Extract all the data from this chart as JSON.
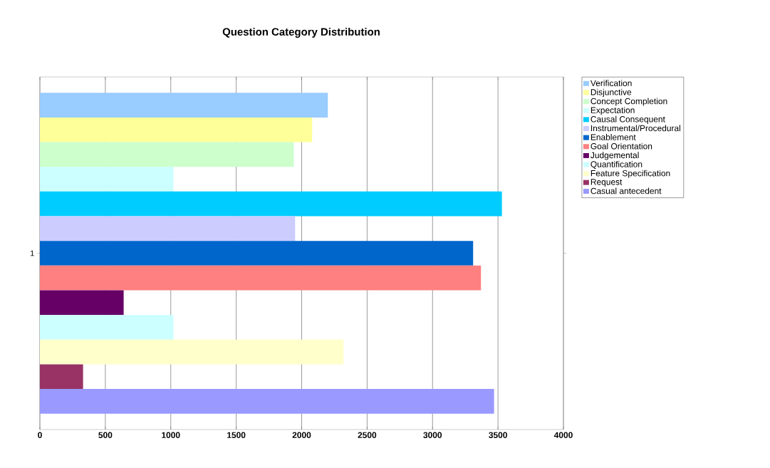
{
  "chart_data": {
    "type": "bar",
    "orientation": "horizontal",
    "title": "Question Category Distribution",
    "categories": [
      "1"
    ],
    "series": [
      {
        "name": "Verification",
        "color": "#99ccff",
        "values": [
          2200
        ]
      },
      {
        "name": "Disjunctive",
        "color": "#ffff99",
        "values": [
          2080
        ]
      },
      {
        "name": "Concept Completion",
        "color": "#ccffcc",
        "values": [
          1940
        ]
      },
      {
        "name": "Expectation",
        "color": "#ccffff",
        "values": [
          1020
        ]
      },
      {
        "name": "Causal Consequent",
        "color": "#00ccff",
        "values": [
          3530
        ]
      },
      {
        "name": "Instrumental/Procedural",
        "color": "#ccccff",
        "values": [
          1950
        ]
      },
      {
        "name": "Enablement",
        "color": "#0066cc",
        "values": [
          3310
        ]
      },
      {
        "name": "Goal Orientation",
        "color": "#ff8080",
        "values": [
          3370
        ]
      },
      {
        "name": "Judgemental",
        "color": "#660066",
        "values": [
          640
        ]
      },
      {
        "name": "Quantification",
        "color": "#ccffff",
        "values": [
          1020
        ]
      },
      {
        "name": "Feature Specification",
        "color": "#ffffcc",
        "values": [
          2320
        ]
      },
      {
        "name": "Request",
        "color": "#993366",
        "values": [
          330
        ]
      },
      {
        "name": "Casual antecedent",
        "color": "#9999ff",
        "values": [
          3470
        ]
      }
    ],
    "xlim": [
      0,
      4000
    ],
    "xticks": [
      0,
      500,
      1000,
      1500,
      2000,
      2500,
      3000,
      3500,
      4000
    ],
    "grid": "x",
    "legend": "right"
  }
}
